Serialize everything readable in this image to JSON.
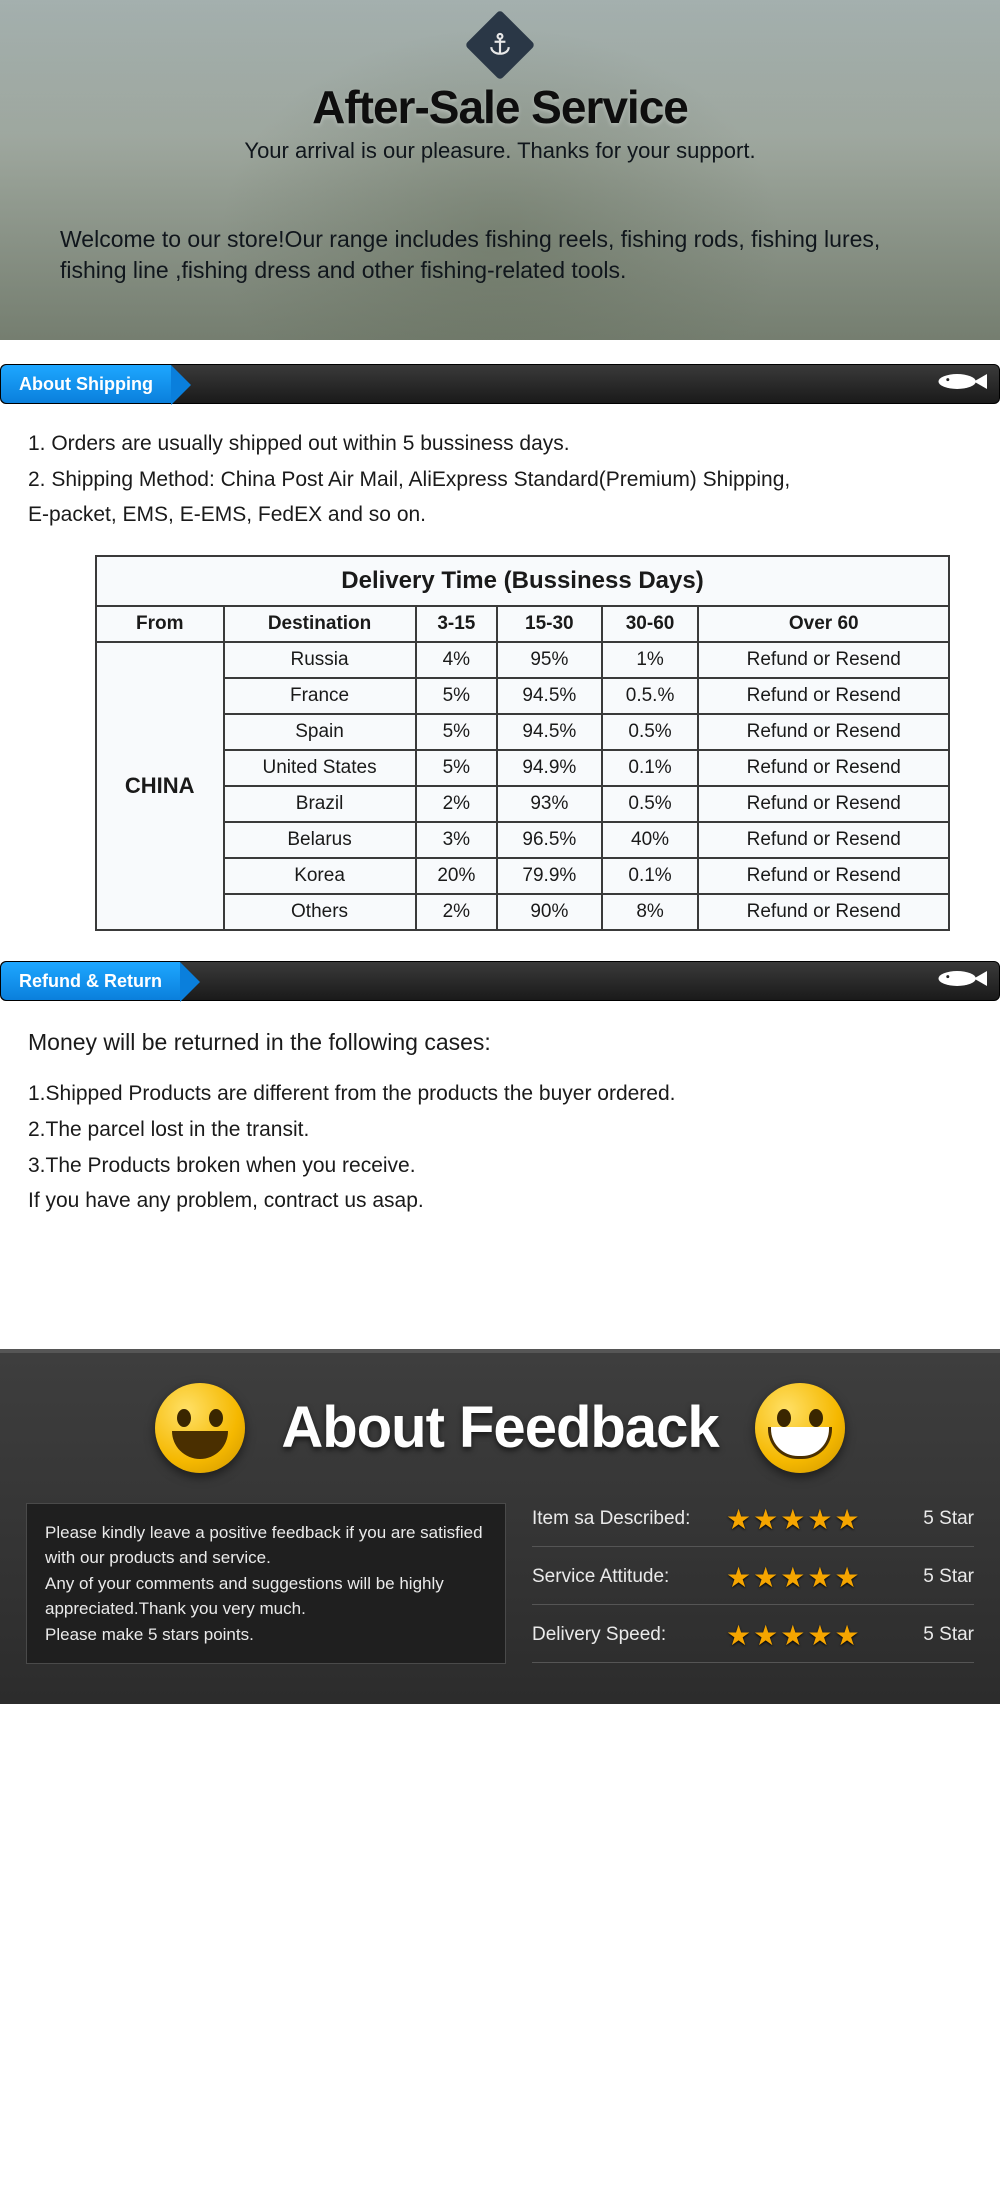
{
  "hero": {
    "title": "After-Sale Service",
    "subtitle": "Your arrival is our pleasure. Thanks for your support.",
    "welcome": "Welcome to our store!Our range includes fishing reels, fishing rods, fishing lures, fishing line ,fishing dress and other fishing-related tools."
  },
  "shipping": {
    "tab": "About Shipping",
    "lines": [
      "1. Orders are usually shipped out within 5 bussiness days.",
      "2. Shipping Method: China Post Air Mail, AliExpress Standard(Premium) Shipping,",
      "E-packet, EMS,  E-EMS, FedEX and so on."
    ],
    "table": {
      "title": "Delivery Time (Bussiness Days)",
      "columns": [
        "From",
        "Destination",
        "3-15",
        "15-30",
        "30-60",
        "Over 60"
      ],
      "from": "CHINA",
      "rows": [
        {
          "dest": "Russia",
          "c1": "4%",
          "c2": "95%",
          "c3": "1%",
          "c4": "Refund or Resend"
        },
        {
          "dest": "France",
          "c1": "5%",
          "c2": "94.5%",
          "c3": "0.5.%",
          "c4": "Refund or Resend"
        },
        {
          "dest": "Spain",
          "c1": "5%",
          "c2": "94.5%",
          "c3": "0.5%",
          "c4": "Refund or Resend"
        },
        {
          "dest": "United States",
          "c1": "5%",
          "c2": "94.9%",
          "c3": "0.1%",
          "c4": "Refund or Resend"
        },
        {
          "dest": "Brazil",
          "c1": "2%",
          "c2": "93%",
          "c3": "0.5%",
          "c4": "Refund or Resend"
        },
        {
          "dest": "Belarus",
          "c1": "3%",
          "c2": "96.5%",
          "c3": "40%",
          "c4": "Refund or Resend"
        },
        {
          "dest": "Korea",
          "c1": "20%",
          "c2": "79.9%",
          "c3": "0.1%",
          "c4": "Refund or Resend"
        },
        {
          "dest": "Others",
          "c1": "2%",
          "c2": "90%",
          "c3": "8%",
          "c4": "Refund or Resend"
        }
      ]
    }
  },
  "refund": {
    "tab": "Refund & Return",
    "intro": "Money will be returned in the following cases:",
    "lines": [
      "1.Shipped Products are different from the products the buyer ordered.",
      "2.The parcel lost in the transit.",
      "3.The Products broken when you receive.",
      "If you have any problem, contract us asap."
    ]
  },
  "feedback": {
    "title": "About Feedback",
    "note": "Please kindly leave a positive feedback if you are satisfied with our products and service.\nAny of your comments and suggestions will be highly appreciated.Thank you very much.\nPlease make 5 stars points.",
    "ratings": [
      {
        "label": "Item sa Described:",
        "stars": 5,
        "val": "5 Star"
      },
      {
        "label": "Service Attitude:",
        "stars": 5,
        "val": "5 Star"
      },
      {
        "label": "Delivery Speed:",
        "stars": 5,
        "val": "5 Star"
      }
    ]
  },
  "colors": {
    "tab_blue": "#0a7fdc",
    "bar_dark": "#1a1a1a",
    "star": "#f5a500"
  }
}
